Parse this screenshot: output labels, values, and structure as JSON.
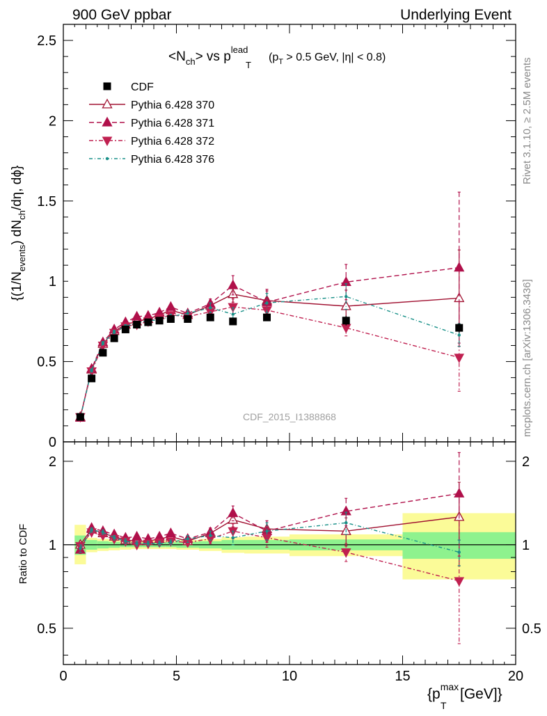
{
  "header": {
    "left": "900 GeV ppbar",
    "right": "Underlying Event"
  },
  "side_text": {
    "rivet": "Rivet 3.1.10, ≥ 2.5M events",
    "mcplots": "mcplots.cern.ch [arXiv:1306.3436]"
  },
  "watermark": "CDF_2015_I1388868",
  "colors": {
    "cdf": "#000000",
    "p370": "#a01030",
    "p371": "#b0104a",
    "p372": "#c02050",
    "p376": "#189088",
    "band_inner": "#8ef28e",
    "band_outer": "#fbfb98"
  },
  "chart_data": [
    {
      "type": "scatter",
      "panel": "main",
      "title": {
        "base": "<N",
        "base_sub": "ch",
        "vs": "> vs p",
        "vs_sup": "lead",
        "vs_sub": "T",
        "cut1": "(p",
        "cut1_sub": "T",
        "cut2": " > 0.5 GeV, |η| < 0.8)"
      },
      "ylabel": {
        "t1": "{(1/N",
        "t1_sub": "events",
        "t2": ") dN",
        "t2_sub": "ch",
        "t3": "/dη, dϕ}"
      },
      "ylim": [
        0,
        2.6
      ],
      "xlim": [
        0,
        20
      ],
      "yticks": [
        "0",
        "0.5",
        "1",
        "1.5",
        "2",
        "2.5"
      ],
      "x": [
        0.75,
        1.25,
        1.75,
        2.25,
        2.75,
        3.25,
        3.75,
        4.25,
        4.75,
        5.5,
        6.5,
        7.5,
        9.0,
        12.5,
        17.5
      ],
      "series": [
        {
          "name": "CDF",
          "style": "data",
          "values": [
            0.155,
            0.395,
            0.555,
            0.645,
            0.7,
            0.73,
            0.745,
            0.755,
            0.765,
            0.765,
            0.775,
            0.75,
            0.775,
            0.755,
            0.71
          ],
          "errors": [
            0.005,
            0.01,
            0.01,
            0.01,
            0.01,
            0.01,
            0.01,
            0.01,
            0.01,
            0.01,
            0.02,
            0.02,
            0.02,
            0.03,
            0.03
          ]
        },
        {
          "name": "Pythia 6.428 370",
          "style": "p370",
          "values": [
            0.155,
            0.45,
            0.61,
            0.69,
            0.73,
            0.75,
            0.765,
            0.79,
            0.82,
            0.79,
            0.85,
            0.92,
            0.88,
            0.845,
            0.895
          ],
          "errors": [
            0.005,
            0.01,
            0.01,
            0.01,
            0.01,
            0.01,
            0.01,
            0.015,
            0.015,
            0.02,
            0.03,
            0.05,
            0.06,
            0.1,
            0.3
          ]
        },
        {
          "name": "Pythia 6.428 371",
          "style": "p371",
          "values": [
            0.15,
            0.455,
            0.62,
            0.7,
            0.745,
            0.78,
            0.785,
            0.805,
            0.84,
            0.8,
            0.86,
            0.975,
            0.87,
            0.995,
            1.085
          ],
          "errors": [
            0.005,
            0.01,
            0.01,
            0.01,
            0.01,
            0.01,
            0.01,
            0.015,
            0.015,
            0.02,
            0.03,
            0.06,
            0.08,
            0.11,
            0.47
          ]
        },
        {
          "name": "Pythia 6.428 372",
          "style": "p372",
          "values": [
            0.155,
            0.44,
            0.6,
            0.68,
            0.72,
            0.73,
            0.75,
            0.77,
            0.79,
            0.78,
            0.81,
            0.84,
            0.82,
            0.71,
            0.525
          ],
          "errors": [
            0.005,
            0.01,
            0.01,
            0.01,
            0.01,
            0.01,
            0.01,
            0.015,
            0.015,
            0.02,
            0.03,
            0.05,
            0.06,
            0.05,
            0.21
          ]
        },
        {
          "name": "Pythia 6.428 376",
          "style": "p376",
          "values": [
            0.15,
            0.445,
            0.615,
            0.685,
            0.72,
            0.74,
            0.755,
            0.76,
            0.78,
            0.8,
            0.835,
            0.795,
            0.865,
            0.905,
            0.665
          ],
          "errors": [
            0.005,
            0.01,
            0.01,
            0.01,
            0.01,
            0.01,
            0.01,
            0.015,
            0.015,
            0.02,
            0.03,
            0.04,
            0.06,
            0.08,
            0.07
          ]
        }
      ]
    },
    {
      "type": "scatter",
      "panel": "ratio",
      "ylabel": "Ratio to CDF",
      "ylim": [
        0.37,
        2.35
      ],
      "yscale": "log",
      "xlim": [
        0,
        20
      ],
      "yticks": [
        "0.5",
        "1",
        "2"
      ],
      "xticks": [
        "0",
        "5",
        "10",
        "15",
        "20"
      ],
      "xlabel": {
        "p": "{p",
        "sup": "max",
        "sub": "T",
        "rest": " [GeV]}"
      },
      "bins": [
        [
          0.5,
          1.0
        ],
        [
          1.0,
          1.5
        ],
        [
          1.5,
          2.0
        ],
        [
          2.0,
          2.5
        ],
        [
          2.5,
          3.0
        ],
        [
          3.0,
          3.5
        ],
        [
          3.5,
          4.0
        ],
        [
          4.0,
          4.5
        ],
        [
          4.5,
          5.0
        ],
        [
          5.0,
          6.0
        ],
        [
          6.0,
          7.0
        ],
        [
          7.0,
          8.0
        ],
        [
          8.0,
          10.0
        ],
        [
          10.0,
          15.0
        ],
        [
          15.0,
          20.0
        ]
      ],
      "band_inner": [
        [
          0.92,
          1.08
        ],
        [
          0.96,
          1.04
        ],
        [
          0.97,
          1.03
        ],
        [
          0.975,
          1.025
        ],
        [
          0.98,
          1.02
        ],
        [
          0.98,
          1.02
        ],
        [
          0.98,
          1.02
        ],
        [
          0.98,
          1.02
        ],
        [
          0.98,
          1.02
        ],
        [
          0.975,
          1.025
        ],
        [
          0.97,
          1.03
        ],
        [
          0.96,
          1.04
        ],
        [
          0.96,
          1.04
        ],
        [
          0.955,
          1.045
        ],
        [
          0.89,
          1.11
        ]
      ],
      "band_outer": [
        [
          0.85,
          1.18
        ],
        [
          0.94,
          1.06
        ],
        [
          0.95,
          1.05
        ],
        [
          0.955,
          1.045
        ],
        [
          0.96,
          1.04
        ],
        [
          0.965,
          1.035
        ],
        [
          0.965,
          1.035
        ],
        [
          0.965,
          1.035
        ],
        [
          0.965,
          1.035
        ],
        [
          0.96,
          1.04
        ],
        [
          0.95,
          1.05
        ],
        [
          0.935,
          1.065
        ],
        [
          0.93,
          1.07
        ],
        [
          0.91,
          1.09
        ],
        [
          0.75,
          1.3
        ]
      ],
      "x": [
        0.75,
        1.25,
        1.75,
        2.25,
        2.75,
        3.25,
        3.75,
        4.25,
        4.75,
        5.5,
        6.5,
        7.5,
        9.0,
        12.5,
        17.5
      ],
      "series": [
        {
          "name": "Pythia 6.428 370",
          "style": "p370",
          "values": [
            1.0,
            1.14,
            1.1,
            1.07,
            1.04,
            1.03,
            1.03,
            1.05,
            1.07,
            1.03,
            1.1,
            1.23,
            1.14,
            1.12,
            1.26
          ],
          "errors": [
            0.03,
            0.02,
            0.02,
            0.02,
            0.02,
            0.02,
            0.02,
            0.02,
            0.02,
            0.03,
            0.04,
            0.07,
            0.08,
            0.13,
            0.42
          ]
        },
        {
          "name": "Pythia 6.428 371",
          "style": "p371",
          "values": [
            0.96,
            1.15,
            1.12,
            1.09,
            1.06,
            1.07,
            1.05,
            1.07,
            1.1,
            1.05,
            1.11,
            1.3,
            1.12,
            1.32,
            1.53
          ],
          "errors": [
            0.03,
            0.02,
            0.02,
            0.02,
            0.02,
            0.02,
            0.02,
            0.02,
            0.02,
            0.03,
            0.04,
            0.08,
            0.1,
            0.15,
            0.62
          ]
        },
        {
          "name": "Pythia 6.428 372",
          "style": "p372",
          "values": [
            0.99,
            1.11,
            1.08,
            1.05,
            1.03,
            1.0,
            1.01,
            1.02,
            1.03,
            1.02,
            1.05,
            1.12,
            1.06,
            0.94,
            0.74
          ],
          "errors": [
            0.03,
            0.02,
            0.02,
            0.02,
            0.02,
            0.02,
            0.02,
            0.02,
            0.02,
            0.03,
            0.04,
            0.07,
            0.08,
            0.07,
            0.3
          ]
        },
        {
          "name": "Pythia 6.428 376",
          "style": "p376",
          "values": [
            0.97,
            1.13,
            1.11,
            1.06,
            1.03,
            1.01,
            1.01,
            1.01,
            1.02,
            1.05,
            1.08,
            1.06,
            1.12,
            1.2,
            0.94
          ],
          "errors": [
            0.03,
            0.02,
            0.02,
            0.02,
            0.02,
            0.02,
            0.02,
            0.02,
            0.02,
            0.03,
            0.04,
            0.06,
            0.08,
            0.11,
            0.1
          ]
        }
      ]
    }
  ]
}
